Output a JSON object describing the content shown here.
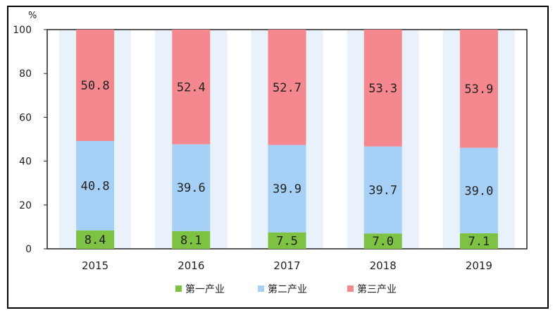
{
  "chart_data": {
    "type": "bar",
    "stacked": true,
    "unit_label": "%",
    "categories": [
      "2015",
      "2016",
      "2017",
      "2018",
      "2019"
    ],
    "series": [
      {
        "name": "第一产业",
        "color": "#7dc242",
        "values": [
          8.4,
          8.1,
          7.5,
          7.0,
          7.1
        ],
        "labels": [
          "8.4",
          "8.1",
          "7.5",
          "7.0",
          "7.1"
        ]
      },
      {
        "name": "第二产业",
        "color": "#a7d0f7",
        "values": [
          40.8,
          39.6,
          39.9,
          39.7,
          39.0
        ],
        "labels": [
          "40.8",
          "39.6",
          "39.9",
          "39.7",
          "39.0"
        ]
      },
      {
        "name": "第三产业",
        "color": "#f4888e",
        "values": [
          50.8,
          52.4,
          52.7,
          53.3,
          53.9
        ],
        "labels": [
          "50.8",
          "52.4",
          "52.7",
          "53.3",
          "53.9"
        ]
      }
    ],
    "yticks": [
      "0",
      "20",
      "40",
      "60",
      "80",
      "100"
    ],
    "ylim": [
      0,
      100
    ],
    "legend_position": "bottom",
    "grid": false,
    "band_color": "#e9f2fb"
  }
}
